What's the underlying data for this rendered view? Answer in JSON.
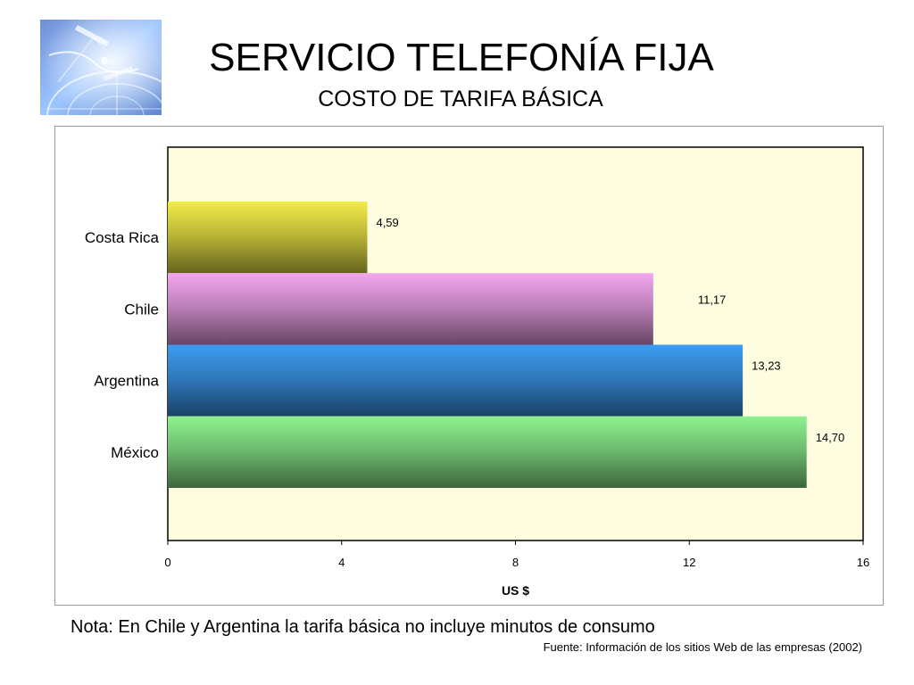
{
  "slide": {
    "title": "SERVICIO TELEFONÍA FIJA",
    "subtitle": "COSTO DE TARIFA BÁSICA",
    "logo_icon": "globe-network-icon",
    "note": "Nota: En Chile y Argentina la tarifa básica no incluye minutos de consumo",
    "source": "Fuente:  Información de los sitios Web de las empresas (2002)"
  },
  "chart_data": {
    "type": "bar",
    "orientation": "horizontal",
    "title": "",
    "xlabel": "US $",
    "ylabel": "",
    "xlim": [
      0,
      16
    ],
    "xticks": [
      0,
      4,
      8,
      12,
      16
    ],
    "categories": [
      "Costa Rica",
      "Chile",
      "Argentina",
      "México"
    ],
    "values": [
      4.59,
      11.17,
      13.23,
      14.7
    ],
    "value_labels": [
      "4,59",
      "11,17",
      "13,23",
      "14,70"
    ],
    "colors": [
      "#f2ec48",
      "#f3a6f0",
      "#3d9cf2",
      "#8ef28e"
    ],
    "plot_background": "#fffde0",
    "grid": false,
    "legend": "none"
  }
}
